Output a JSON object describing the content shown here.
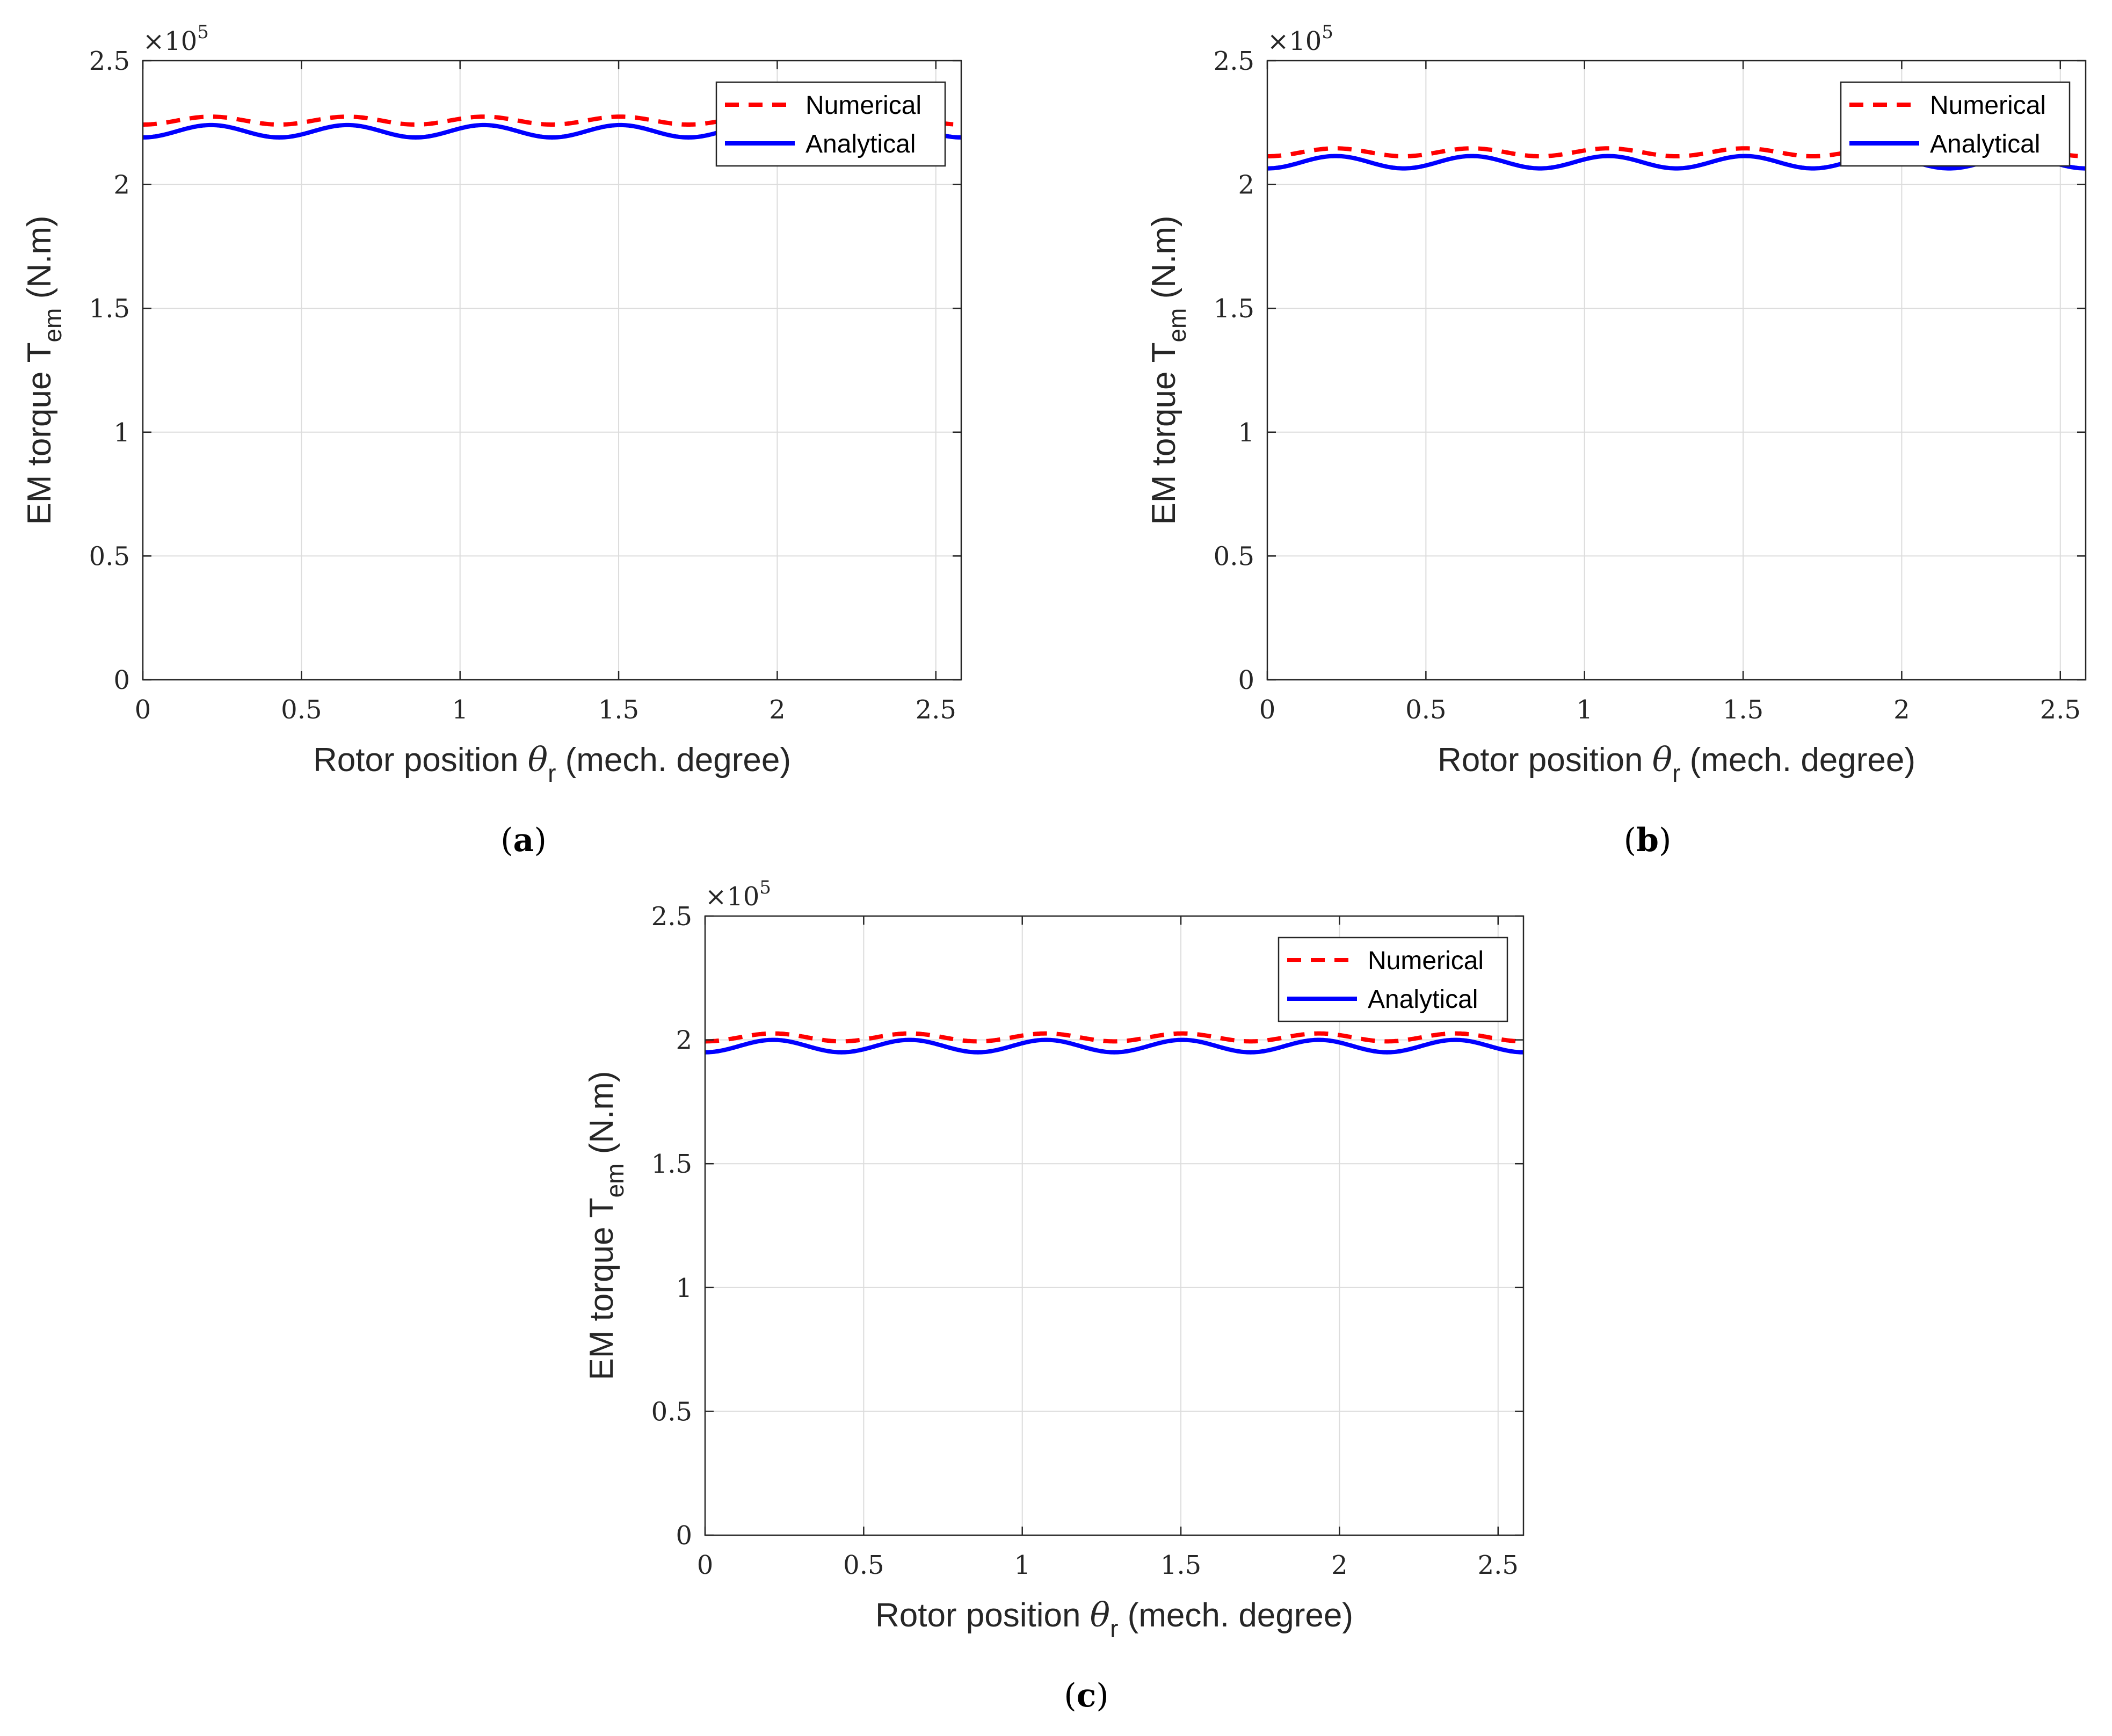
{
  "figure": {
    "colors": {
      "numerical": "#ff0000",
      "analytical": "#0000ff",
      "grid": "#dcdcdc",
      "axes": "#262626"
    },
    "common": {
      "xlabel_prefix": "Rotor position ",
      "xlabel_symbol": "θ",
      "xlabel_subscript": "r",
      "xlabel_suffix": " (mech. degree)",
      "ylabel_prefix": "EM torque T",
      "ylabel_subscript": "em",
      "ylabel_suffix": " (N.m)",
      "y_exponent_base": "×10",
      "y_exponent_power": "5",
      "legend": [
        "Numerical",
        "Analytical"
      ]
    }
  },
  "chart_data": [
    {
      "type": "line",
      "panel": "a",
      "panel_label_open": "(",
      "panel_label_letter": "a",
      "panel_label_close": ")",
      "xlim": [
        0,
        2.58
      ],
      "ylim": [
        0,
        2.5
      ],
      "y_scale": "×10^5",
      "x_ticks": [
        "0",
        "0.5",
        "1",
        "1.5",
        "2",
        "2.5"
      ],
      "x_tick_values": [
        0,
        0.5,
        1,
        1.5,
        2,
        2.5
      ],
      "y_ticks": [
        "0",
        "0.5",
        "1",
        "1.5",
        "2",
        "2.5"
      ],
      "y_tick_values": [
        0,
        0.5,
        1,
        1.5,
        2,
        2.5
      ],
      "grid": true,
      "legend_position": "top-right",
      "series": [
        {
          "name": "Numerical",
          "style": "dashed",
          "mean": 2.258,
          "amplitude": 0.016,
          "period": 0.43,
          "peak_at": 0.215
        },
        {
          "name": "Analytical",
          "style": "solid",
          "mean": 2.215,
          "amplitude": 0.025,
          "period": 0.43,
          "peak_at": 0.215
        }
      ]
    },
    {
      "type": "line",
      "panel": "b",
      "panel_label_open": "(",
      "panel_label_letter": "b",
      "panel_label_close": ")",
      "xlim": [
        0,
        2.58
      ],
      "ylim": [
        0,
        2.5
      ],
      "y_scale": "×10^5",
      "x_ticks": [
        "0",
        "0.5",
        "1",
        "1.5",
        "2",
        "2.5"
      ],
      "x_tick_values": [
        0,
        0.5,
        1,
        1.5,
        2,
        2.5
      ],
      "y_ticks": [
        "0",
        "0.5",
        "1",
        "1.5",
        "2",
        "2.5"
      ],
      "y_tick_values": [
        0,
        0.5,
        1,
        1.5,
        2,
        2.5
      ],
      "grid": true,
      "legend_position": "top-right",
      "series": [
        {
          "name": "Numerical",
          "style": "dashed",
          "mean": 2.13,
          "amplitude": 0.016,
          "period": 0.43,
          "peak_at": 0.215
        },
        {
          "name": "Analytical",
          "style": "solid",
          "mean": 2.09,
          "amplitude": 0.025,
          "period": 0.43,
          "peak_at": 0.215
        }
      ]
    },
    {
      "type": "line",
      "panel": "c",
      "panel_label_open": "(",
      "panel_label_letter": "c",
      "panel_label_close": ")",
      "xlim": [
        0,
        2.58
      ],
      "ylim": [
        0,
        2.5
      ],
      "y_scale": "×10^5",
      "x_ticks": [
        "0",
        "0.5",
        "1",
        "1.5",
        "2",
        "2.5"
      ],
      "x_tick_values": [
        0,
        0.5,
        1,
        1.5,
        2,
        2.5
      ],
      "y_ticks": [
        "0",
        "0.5",
        "1",
        "1.5",
        "2",
        "2.5"
      ],
      "y_tick_values": [
        0,
        0.5,
        1,
        1.5,
        2,
        2.5
      ],
      "grid": true,
      "legend_position": "top-right",
      "series": [
        {
          "name": "Numerical",
          "style": "dashed",
          "mean": 2.01,
          "amplitude": 0.016,
          "period": 0.43,
          "peak_at": 0.215
        },
        {
          "name": "Analytical",
          "style": "solid",
          "mean": 1.975,
          "amplitude": 0.025,
          "period": 0.43,
          "peak_at": 0.215
        }
      ]
    }
  ]
}
